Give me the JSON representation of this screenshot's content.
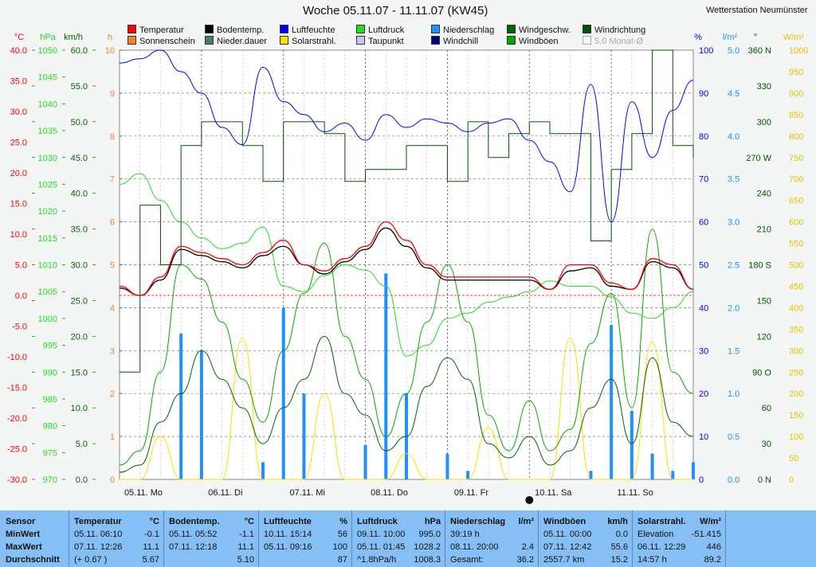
{
  "title": "Woche 05.11.07 - 11.11.07 (KW45)",
  "station": "Wetterstation Neumünster",
  "legend": [
    {
      "label": "Temperatur",
      "color": "#ff0000"
    },
    {
      "label": "Bodentemp.",
      "color": "#000000"
    },
    {
      "label": "Luftfeuchte",
      "color": "#0000ff"
    },
    {
      "label": "Luftdruck",
      "color": "#22dd22"
    },
    {
      "label": "Niederschlag",
      "color": "#1e90ff"
    },
    {
      "label": "Windgeschw.",
      "color": "#006600"
    },
    {
      "label": "Windrichtung",
      "color": "#005500"
    },
    {
      "label": "Sonnenschein",
      "color": "#ff7f27"
    },
    {
      "label": "Nieder.dauer",
      "color": "#4a7a7a"
    },
    {
      "label": "Solarstrahl.",
      "color": "#ffdd00"
    },
    {
      "label": "Taupunkt",
      "color": "#c8c8f0"
    },
    {
      "label": "Windchill",
      "color": "#000080"
    },
    {
      "label": "Windböen",
      "color": "#00aa00"
    },
    {
      "label": "5.0 Monat-Ø",
      "color": "#aaaaaa",
      "disabled": true
    }
  ],
  "axes": {
    "temp": {
      "unit": "°C",
      "color": "#ff0000",
      "ticks": [
        "40.0",
        "35.0",
        "30.0",
        "25.0",
        "20.0",
        "15.0",
        "10.0",
        "5.0",
        "0.0",
        "-5.0",
        "-10.0",
        "-15.0",
        "-20.0",
        "-25.0",
        "-30.0"
      ]
    },
    "hpa": {
      "unit": "hPa",
      "color": "#22dd22",
      "ticks": [
        "1050",
        "1045",
        "1040",
        "1035",
        "1030",
        "1025",
        "1020",
        "1015",
        "1010",
        "1005",
        "1000",
        "995",
        "990",
        "985",
        "980",
        "975",
        "970"
      ]
    },
    "kmh": {
      "unit": "km/h",
      "color": "#006600",
      "ticks": [
        "60.0",
        "55.0",
        "50.0",
        "45.0",
        "40.0",
        "35.0",
        "30.0",
        "25.0",
        "20.0",
        "15.0",
        "10.0",
        "5.0",
        "0.0"
      ]
    },
    "h": {
      "unit": "h",
      "color": "#ff7f27",
      "ticks": [
        "10",
        "9",
        "8",
        "7",
        "6",
        "5",
        "4",
        "3",
        "2",
        "1",
        "0"
      ]
    },
    "pct": {
      "unit": "%",
      "color": "#0000ff",
      "ticks": [
        "100",
        "90",
        "80",
        "70",
        "60",
        "50",
        "40",
        "30",
        "20",
        "10",
        "0"
      ]
    },
    "lm2": {
      "unit": "l/m²",
      "color": "#1e90ff",
      "ticks": [
        "5.0",
        "4.5",
        "4.0",
        "3.5",
        "3.0",
        "2.5",
        "2.0",
        "1.5",
        "1.0",
        "0.5",
        "0.0"
      ]
    },
    "deg": {
      "unit": "°",
      "color": "#005500",
      "ticks": [
        "360 N",
        "330",
        "300",
        "270 W",
        "240",
        "210",
        "180 S",
        "150",
        "120",
        "90 O",
        "60",
        "30",
        "0 N"
      ]
    },
    "wm2": {
      "unit": "W/m²",
      "color": "#ffdd00",
      "ticks": [
        "1000",
        "950",
        "900",
        "850",
        "800",
        "750",
        "700",
        "650",
        "600",
        "550",
        "500",
        "450",
        "400",
        "350",
        "300",
        "250",
        "200",
        "150",
        "100",
        "50",
        "0"
      ]
    }
  },
  "days": [
    "05.11. Mo",
    "06.11. Di",
    "07.11. Mi",
    "08.11. Do",
    "09.11. Fr",
    "10.11. Sa",
    "11.11. So"
  ],
  "chart_data": {
    "type": "line",
    "title": "Woche 05.11.07 - 11.11.07 (KW45)",
    "x_hours": [
      0,
      6,
      12,
      18,
      24,
      30,
      36,
      42,
      48,
      54,
      60,
      66,
      72,
      78,
      84,
      90,
      96,
      102,
      108,
      114,
      120,
      126,
      132,
      138,
      144,
      150,
      156,
      162,
      168
    ],
    "series": [
      {
        "name": "Temperatur",
        "unit": "°C",
        "color": "#ff0000",
        "values": [
          1.5,
          0,
          3,
          8,
          7,
          6,
          5,
          7,
          9,
          5,
          4,
          6,
          8,
          12,
          9,
          5,
          3,
          3,
          3,
          3,
          3,
          1,
          5,
          5,
          2,
          1,
          6,
          5,
          1
        ]
      },
      {
        "name": "Bodentemp.",
        "unit": "°C",
        "color": "#000000",
        "values": [
          1.2,
          0,
          2.5,
          7.5,
          6.5,
          5.5,
          4.5,
          6.5,
          8,
          5,
          3.5,
          5.5,
          7.5,
          11,
          8,
          4.5,
          2.5,
          2.5,
          2.5,
          2.5,
          2.5,
          1,
          4,
          4.5,
          1.5,
          1,
          5.5,
          4.5,
          1
        ]
      },
      {
        "name": "Luftfeuchte",
        "unit": "%",
        "color": "#0000ff",
        "values": [
          97,
          98,
          100,
          95,
          90,
          82,
          78,
          96,
          88,
          85,
          81,
          83,
          79,
          85,
          82,
          84,
          83,
          81,
          83,
          84,
          79,
          74,
          67,
          92,
          60,
          88,
          75,
          86,
          93
        ]
      },
      {
        "name": "Luftdruck",
        "unit": "hPa",
        "color": "#22dd22",
        "values": [
          1025,
          1027,
          1022,
          1018,
          1015,
          1013,
          1014,
          1017,
          1006,
          1005,
          1008,
          1010,
          1009,
          1006,
          993,
          995,
          1000,
          1001,
          1003,
          1004,
          1005,
          1007,
          1006,
          1006,
          1004,
          1001,
          1000,
          1002,
          1005
        ]
      },
      {
        "name": "Windgeschw.",
        "unit": "km/h",
        "color": "#006600",
        "values": [
          1,
          2,
          8,
          12,
          18,
          14,
          10,
          5,
          10,
          14,
          20,
          12,
          9,
          4,
          6,
          13,
          17,
          14,
          5,
          3,
          6,
          2,
          4,
          10,
          14,
          5,
          17,
          8,
          6
        ]
      },
      {
        "name": "Windböen",
        "unit": "km/h",
        "color": "#00aa00",
        "values": [
          2,
          4,
          15,
          30,
          28,
          22,
          14,
          8,
          18,
          26,
          33,
          20,
          14,
          6,
          12,
          22,
          30,
          22,
          9,
          4,
          11,
          4,
          7,
          19,
          26,
          10,
          35,
          15,
          12
        ]
      },
      {
        "name": "Windrichtung",
        "unit": "°",
        "color": "#005500",
        "values": [
          90,
          230,
          180,
          280,
          300,
          300,
          280,
          250,
          300,
          300,
          290,
          250,
          260,
          260,
          280,
          280,
          250,
          300,
          270,
          290,
          300,
          290,
          290,
          200,
          260,
          290,
          360,
          280,
          270
        ]
      },
      {
        "name": "Solarstrahl.",
        "unit": "W/m²",
        "color": "#ffdd00",
        "values": [
          0,
          0,
          100,
          0,
          0,
          0,
          330,
          0,
          0,
          0,
          200,
          0,
          0,
          0,
          60,
          0,
          0,
          0,
          120,
          0,
          0,
          0,
          330,
          0,
          0,
          0,
          320,
          0,
          0
        ]
      },
      {
        "name": "Niederschlag",
        "unit": "l/m²",
        "color": "#1e90ff",
        "values": [
          0,
          0,
          0,
          1.7,
          1.5,
          0,
          0,
          0.2,
          2.0,
          1.0,
          0,
          0,
          0.4,
          2.4,
          1.0,
          0,
          0.3,
          0.1,
          0,
          0,
          0,
          0,
          0,
          0.1,
          1.8,
          0.8,
          0.3,
          0.1,
          0.2
        ]
      }
    ]
  },
  "table": {
    "row_labels": {
      "sensor": "Sensor",
      "min": "MinWert",
      "max": "MaxWert",
      "avg": "Durchschnitt"
    },
    "columns": [
      {
        "name": "Temperatur",
        "unit": "°C",
        "min_time": "05.11.  06:10",
        "min_val": "-0.1",
        "max_time": "07.11.  12:26",
        "max_val": "11.1",
        "avg_time": "(+ 0.67 )",
        "avg_val": "5.67"
      },
      {
        "name": "Bodentemp.",
        "unit": "°C",
        "min_time": "05.11.  05:52",
        "min_val": "-1.1",
        "max_time": "07.11.  12:18",
        "max_val": "11.1",
        "avg_time": "",
        "avg_val": "5.10"
      },
      {
        "name": "Luftfeuchte",
        "unit": "%",
        "min_time": "10.11.  15:14",
        "min_val": "56",
        "max_time": "05.11.  09:16",
        "max_val": "100",
        "avg_time": "",
        "avg_val": "87"
      },
      {
        "name": "Luftdruck",
        "unit": "hPa",
        "min_time": "09.11.  10:00",
        "min_val": "995.0",
        "max_time": "05.11.  01:45",
        "max_val": "1028.2",
        "avg_time": "^1.8hPa/h",
        "avg_val": "1008.3"
      },
      {
        "name": "Niederschlag",
        "unit": "l/m²",
        "min_time": "39:19 h",
        "min_val": "",
        "max_time": "08.11.  20:00",
        "max_val": "2.4",
        "avg_time": "Gesamt:",
        "avg_val": "36.2"
      },
      {
        "name": "Windböen",
        "unit": "km/h",
        "min_time": "05.11.  00:00",
        "min_val": "0.0",
        "max_time": "07.11.  12:42",
        "max_val": "55.6",
        "avg_time": "2557.7 km",
        "avg_val": "15.2"
      },
      {
        "name": "Solarstrahl.",
        "unit": "W/m²",
        "min_time": "Elevation",
        "min_val": "-51.415",
        "max_time": "06.11.  12:29",
        "max_val": "446",
        "avg_time": "14:57 h",
        "avg_val": "89.2"
      }
    ]
  }
}
